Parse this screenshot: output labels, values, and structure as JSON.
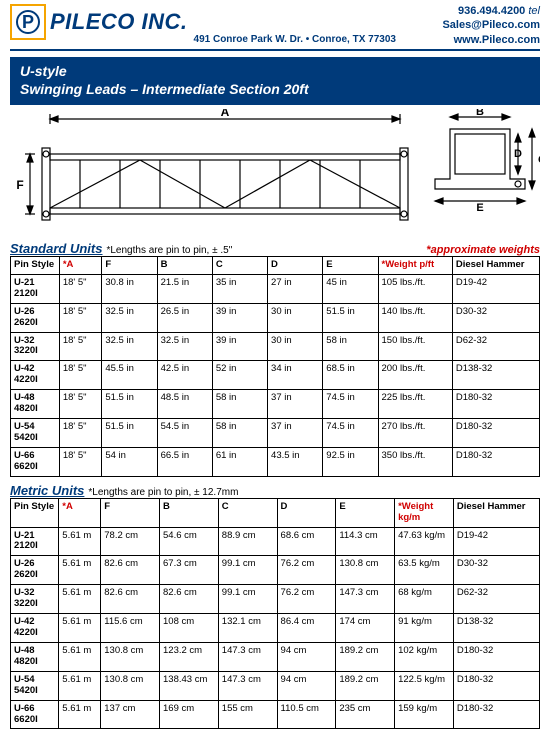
{
  "header": {
    "company": "PILECO INC.",
    "address": "491 Conroe Park W. Dr. • Conroe, TX 77303",
    "phone": "936.494.4200",
    "tel_label": "tel",
    "email": "Sales@Pileco.com",
    "website": "www.Pileco.com"
  },
  "title": {
    "line1": "U-style",
    "line2": "Swinging Leads – Intermediate Section 20ft"
  },
  "diagram_labels": {
    "A": "A",
    "B": "B",
    "C": "C",
    "D": "D",
    "E": "E",
    "F": "F"
  },
  "notes": {
    "std_lengths": "*Lengths are pin to pin, ± .5\"",
    "metric_lengths": "*Lengths are pin to pin, ± 12.7mm",
    "approx": "*approximate weights"
  },
  "sections": {
    "standard": "Standard Units",
    "metric": "Metric Units"
  },
  "std_cols": {
    "pin": "Pin Style",
    "a": "*A",
    "f": "F",
    "b": "B",
    "c": "C",
    "d": "D",
    "e": "E",
    "w": "*Weight p/ft",
    "h": "Diesel Hammer"
  },
  "metric_cols": {
    "pin": "Pin Style",
    "a": "*A",
    "f": "F",
    "b": "B",
    "c": "C",
    "d": "D",
    "e": "E",
    "w": "*Weight kg/m",
    "h": "Diesel Hammer"
  },
  "std_rows": [
    {
      "pin": "U-21 2120I",
      "a": "18' 5\"",
      "f": "30.8 in",
      "b": "21.5 in",
      "c": "35 in",
      "d": "27 in",
      "e": "45 in",
      "w": "105 lbs./ft.",
      "h": "D19-42"
    },
    {
      "pin": "U-26 2620I",
      "a": "18' 5\"",
      "f": "32.5 in",
      "b": "26.5 in",
      "c": "39 in",
      "d": "30 in",
      "e": "51.5 in",
      "w": "140 lbs./ft.",
      "h": "D30-32"
    },
    {
      "pin": "U-32 3220I",
      "a": "18' 5\"",
      "f": "32.5 in",
      "b": "32.5 in",
      "c": "39 in",
      "d": "30 in",
      "e": "58 in",
      "w": "150 lbs./ft.",
      "h": "D62-32"
    },
    {
      "pin": "U-42 4220I",
      "a": "18' 5\"",
      "f": "45.5 in",
      "b": "42.5 in",
      "c": "52 in",
      "d": "34 in",
      "e": "68.5 in",
      "w": "200 lbs./ft.",
      "h": "D138-32"
    },
    {
      "pin": "U-48 4820I",
      "a": "18' 5\"",
      "f": "51.5 in",
      "b": "48.5 in",
      "c": "58 in",
      "d": "37 in",
      "e": "74.5 in",
      "w": "225 lbs./ft.",
      "h": "D180-32"
    },
    {
      "pin": "U-54 5420I",
      "a": "18' 5\"",
      "f": "51.5 in",
      "b": "54.5 in",
      "c": "58 in",
      "d": "37 in",
      "e": "74.5 in",
      "w": "270 lbs./ft.",
      "h": "D180-32"
    },
    {
      "pin": "U-66 6620I",
      "a": "18' 5\"",
      "f": "54 in",
      "b": "66.5 in",
      "c": "61 in",
      "d": "43.5 in",
      "e": "92.5 in",
      "w": "350 lbs./ft.",
      "h": "D180-32"
    }
  ],
  "metric_rows": [
    {
      "pin": "U-21 2120I",
      "a": "5.61 m",
      "f": "78.2 cm",
      "b": "54.6 cm",
      "c": "88.9 cm",
      "d": "68.6 cm",
      "e": "114.3 cm",
      "w": "47.63 kg/m",
      "h": "D19-42"
    },
    {
      "pin": "U-26 2620I",
      "a": "5.61 m",
      "f": "82.6 cm",
      "b": "67.3 cm",
      "c": "99.1 cm",
      "d": "76.2 cm",
      "e": "130.8 cm",
      "w": "63.5 kg/m",
      "h": "D30-32"
    },
    {
      "pin": "U-32 3220I",
      "a": "5.61 m",
      "f": "82.6 cm",
      "b": "82.6 cm",
      "c": "99.1 cm",
      "d": "76.2 cm",
      "e": "147.3 cm",
      "w": "68 kg/m",
      "h": "D62-32"
    },
    {
      "pin": "U-42 4220I",
      "a": "5.61 m",
      "f": "115.6 cm",
      "b": "108 cm",
      "c": "132.1 cm",
      "d": "86.4 cm",
      "e": "174 cm",
      "w": "91  kg/m",
      "h": "D138-32"
    },
    {
      "pin": "U-48 4820I",
      "a": "5.61 m",
      "f": "130.8 cm",
      "b": "123.2 cm",
      "c": "147.3 cm",
      "d": "94 cm",
      "e": "189.2 cm",
      "w": "102 kg/m",
      "h": "D180-32"
    },
    {
      "pin": "U-54 5420I",
      "a": "5.61 m",
      "f": "130.8 cm",
      "b": "138.43 cm",
      "c": "147.3 cm",
      "d": "94 cm",
      "e": "189.2 cm",
      "w": "122.5 kg/m",
      "h": "D180-32"
    },
    {
      "pin": "U-66 6620I",
      "a": "5.61 m",
      "f": "137 cm",
      "b": "169 cm",
      "c": "155 cm",
      "d": "110.5 cm",
      "e": "235 cm",
      "w": "159 kg/m",
      "h": "D180-32"
    }
  ],
  "colors": {
    "brand_blue": "#003a7a",
    "brand_yellow": "#f5a400",
    "red": "#d00000",
    "border": "#000000",
    "bg": "#ffffff"
  }
}
